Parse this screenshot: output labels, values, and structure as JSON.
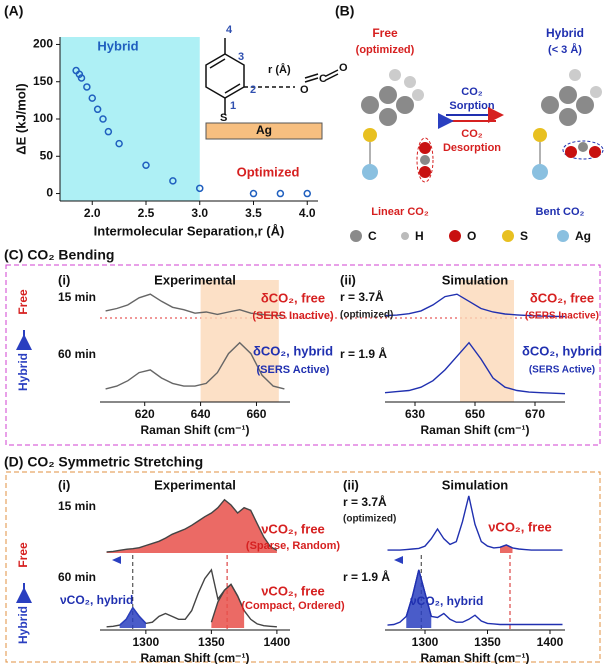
{
  "labels": {
    "a": "(A)",
    "b": "(B)",
    "c": "(C) CO₂ Bending",
    "d": "(D) CO₂ Symmetric Stretching",
    "c_side": [
      "Hybrid",
      "Free"
    ],
    "d_side": [
      "Hybrid",
      "Free"
    ]
  },
  "molecule": {
    "positions": [
      "1",
      "2",
      "3",
      "4"
    ],
    "r": "r (Å)",
    "s": "S",
    "ag": "Ag",
    "co2": [
      "O",
      "C",
      "O"
    ]
  },
  "panel_b": {
    "free": "Free",
    "free_sub": "(optimized)",
    "hybrid": "Hybrid",
    "hybrid_sub": "(< 3 Å)",
    "sorption": [
      "CO₂",
      "Sorption"
    ],
    "desorption": [
      "CO₂",
      "Desorption"
    ],
    "linear": "Linear CO₂",
    "bent": "Bent CO₂",
    "legend": [
      "C",
      "H",
      "O",
      "S",
      "Ag"
    ]
  },
  "chart_data": [
    {
      "type": "scatter",
      "ylabel": "ΔE (kJ/mol)",
      "xlabel": "Intermolecular Separation,r (Å)",
      "color": "#1f5fbf",
      "highlight_color": "#aef0f5",
      "x": [
        1.85,
        1.88,
        1.9,
        1.95,
        2.0,
        2.05,
        2.1,
        2.15,
        2.25,
        2.5,
        2.75,
        3.0,
        3.5,
        3.75,
        4.0
      ],
      "values": [
        165,
        160,
        155,
        143,
        128,
        113,
        100,
        83,
        67,
        38,
        17,
        7,
        0,
        0,
        0
      ],
      "xlim": [
        1.7,
        4.1
      ],
      "ylim": [
        -10,
        210
      ],
      "xticks": [
        {
          "value": 2,
          "label": "2.0"
        },
        {
          "value": 2.5,
          "label": "2.5"
        },
        {
          "value": 3,
          "label": "3.0"
        },
        {
          "value": 3.5,
          "label": "3.5"
        },
        {
          "value": 4,
          "label": "4.0"
        }
      ],
      "yticks": [
        0,
        50,
        100,
        150,
        200
      ],
      "highlight_x": [
        1.7,
        3.0
      ],
      "annotations": [
        {
          "text": "Hybrid",
          "color": "#1f5fbf"
        },
        {
          "text": "Optimized",
          "color": "#d62020"
        }
      ]
    },
    {
      "type": "line",
      "panel": "(i)",
      "title": "Experimental",
      "xlabel": "Raman Shift (cm⁻¹)",
      "xlim": [
        604,
        672
      ],
      "ylim": [
        0,
        1.05
      ],
      "xticks": [
        620,
        640,
        660
      ],
      "highlight": [
        640,
        668
      ],
      "highlight_color": "#fbd8b8",
      "series": [
        {
          "name": "15 min",
          "color": "#666666",
          "x": [
            606,
            610,
            614,
            618,
            622,
            626,
            630,
            634,
            638,
            642,
            646,
            650,
            654,
            658,
            662,
            666,
            670
          ],
          "values": [
            0.3,
            0.4,
            0.55,
            0.85,
            1.0,
            0.7,
            0.45,
            0.35,
            0.2,
            0.25,
            0.15,
            0.25,
            0.35,
            0.2,
            0.15,
            0.1,
            0.1
          ]
        },
        {
          "name": "60 min",
          "color": "#666666",
          "x": [
            606,
            610,
            614,
            618,
            622,
            626,
            630,
            634,
            638,
            642,
            646,
            650,
            654,
            658,
            662,
            666,
            670
          ],
          "values": [
            0.15,
            0.2,
            0.3,
            0.45,
            0.5,
            0.35,
            0.25,
            0.2,
            0.2,
            0.25,
            0.45,
            0.8,
            1.0,
            0.8,
            0.4,
            0.2,
            0.15
          ]
        }
      ],
      "annotations": [
        {
          "text": "δCO₂, free",
          "color": "#d62020"
        },
        {
          "text": "(SERS Inactive)",
          "color": "#d62020"
        },
        {
          "text": "δCO₂, hybrid",
          "color": "#2030b0"
        },
        {
          "text": "(SERS Active)",
          "color": "#2030b0"
        }
      ]
    },
    {
      "type": "line",
      "panel": "(ii)",
      "title": "Simulation",
      "xlabel": "Raman Shift (cm⁻¹)",
      "xlim": [
        620,
        680
      ],
      "ylim": [
        0,
        1.05
      ],
      "xticks": [
        630,
        650,
        670
      ],
      "highlight": [
        645,
        663
      ],
      "highlight_color": "#fbd8b8",
      "series": [
        {
          "name": "r = 3.7Å",
          "color": "#2030b0",
          "x": [
            620,
            624,
            628,
            632,
            636,
            640,
            644,
            648,
            652,
            656,
            660,
            664,
            668,
            672,
            676,
            680
          ],
          "values": [
            0.1,
            0.12,
            0.18,
            0.3,
            0.55,
            0.9,
            1.0,
            0.7,
            0.4,
            0.25,
            0.17,
            0.13,
            0.1,
            0.08,
            0.07,
            0.06
          ]
        },
        {
          "name": "r = 1.9 Å",
          "color": "#2030b0",
          "x": [
            620,
            624,
            628,
            632,
            636,
            640,
            644,
            648,
            652,
            656,
            660,
            664,
            668,
            672,
            676,
            680
          ],
          "values": [
            0.08,
            0.1,
            0.12,
            0.18,
            0.3,
            0.5,
            0.75,
            1.0,
            0.7,
            0.35,
            0.18,
            0.12,
            0.09,
            0.08,
            0.07,
            0.06
          ]
        }
      ],
      "annotations": [
        {
          "text": "(optimized)",
          "color": "#222222"
        },
        {
          "text": "δCO₂, free",
          "color": "#d62020"
        },
        {
          "text": "(SERS Inactive)",
          "color": "#d62020"
        },
        {
          "text": "δCO₂, hybrid",
          "color": "#2030b0"
        },
        {
          "text": "(SERS Active)",
          "color": "#2030b0"
        }
      ]
    },
    {
      "type": "line",
      "panel": "(i)",
      "title": "Experimental",
      "xlabel": "Raman Shift (cm⁻¹)",
      "xlim": [
        1265,
        1410
      ],
      "ylim": [
        0,
        1.05
      ],
      "xticks": [
        1300,
        1350,
        1400
      ],
      "reference_lines": [
        1290,
        1362
      ],
      "series": [
        {
          "name": "15 min",
          "color": "#444444",
          "fill": "#e8504a",
          "x": [
            1270,
            1275,
            1280,
            1285,
            1290,
            1295,
            1300,
            1305,
            1310,
            1315,
            1320,
            1325,
            1330,
            1335,
            1340,
            1345,
            1350,
            1355,
            1360,
            1365,
            1370,
            1375,
            1380,
            1385,
            1390,
            1395,
            1400
          ],
          "values": [
            0.02,
            0.03,
            0.05,
            0.07,
            0.08,
            0.1,
            0.14,
            0.18,
            0.22,
            0.28,
            0.35,
            0.4,
            0.45,
            0.52,
            0.6,
            0.68,
            0.75,
            0.85,
            1.0,
            0.9,
            0.75,
            0.85,
            0.8,
            0.55,
            0.3,
            0.12,
            0.05
          ]
        },
        {
          "name": "60 min",
          "color": "#444444",
          "x": [
            1270,
            1275,
            1280,
            1285,
            1290,
            1295,
            1300,
            1305,
            1310,
            1315,
            1320,
            1325,
            1330,
            1335,
            1340,
            1345,
            1350,
            1355,
            1360,
            1365,
            1370,
            1375,
            1380,
            1385,
            1390,
            1395,
            1400
          ],
          "values": [
            0.02,
            0.03,
            0.05,
            0.15,
            0.35,
            0.2,
            0.08,
            0.1,
            0.2,
            0.25,
            0.2,
            0.15,
            0.15,
            0.3,
            0.6,
            0.85,
            1.0,
            0.5,
            0.65,
            0.75,
            0.55,
            0.3,
            0.15,
            0.07,
            0.04,
            0.03,
            0.02
          ]
        },
        {
          "color": "#2a3fc0",
          "fill": "#2a3fc0",
          "x": [
            1280,
            1285,
            1290,
            1295,
            1300
          ],
          "values": [
            0.05,
            0.15,
            0.35,
            0.2,
            0.08
          ]
        },
        {
          "color": "#444444",
          "fill": "#e8504a",
          "x": [
            1350,
            1355,
            1360,
            1365,
            1370,
            1375
          ],
          "values": [
            0.1,
            0.45,
            0.65,
            0.75,
            0.55,
            0.3
          ]
        }
      ],
      "annotations": [
        {
          "text": "νCO₂, free",
          "color": "#d62020"
        },
        {
          "text": "(Sparse, Random)",
          "color": "#d62020"
        },
        {
          "text": "νCO₂, free",
          "color": "#d62020"
        },
        {
          "text": "(Compact, Ordered)",
          "color": "#d62020"
        },
        {
          "text": "νCO₂, hybrid",
          "color": "#2030b0"
        }
      ]
    },
    {
      "type": "line",
      "panel": "(ii)",
      "title": "Simulation",
      "xlabel": "Raman Shift (cm⁻¹)",
      "xlim": [
        1268,
        1412
      ],
      "ylim": [
        0,
        1.05
      ],
      "xticks": [
        1300,
        1350,
        1400
      ],
      "reference_lines": [
        1297,
        1368
      ],
      "series": [
        {
          "name": "r = 3.7Å",
          "color": "#2030b0",
          "x": [
            1270,
            1275,
            1280,
            1285,
            1290,
            1295,
            1300,
            1305,
            1310,
            1315,
            1320,
            1325,
            1330,
            1335,
            1340,
            1345,
            1350,
            1355,
            1360,
            1365,
            1370,
            1375,
            1380,
            1385,
            1390,
            1395,
            1400,
            1405,
            1410
          ],
          "values": [
            0.05,
            0.05,
            0.05,
            0.06,
            0.07,
            0.08,
            0.12,
            0.25,
            0.42,
            0.25,
            0.15,
            0.2,
            0.55,
            1.0,
            0.5,
            0.2,
            0.12,
            0.09,
            0.1,
            0.14,
            0.09,
            0.07,
            0.06,
            0.05,
            0.05,
            0.05,
            0.05,
            0.05,
            0.05
          ]
        },
        {
          "color": "#2030b0",
          "fill": "#e8504a",
          "x": [
            1360,
            1365,
            1370
          ],
          "values": [
            0.1,
            0.14,
            0.09
          ]
        },
        {
          "name": "r = 1.9 Å",
          "color": "#2030b0",
          "x": [
            1270,
            1275,
            1280,
            1285,
            1290,
            1295,
            1300,
            1305,
            1310,
            1315,
            1320,
            1325,
            1330,
            1335,
            1340,
            1345,
            1350,
            1355,
            1360,
            1365,
            1370,
            1375,
            1380,
            1385,
            1390,
            1395,
            1400,
            1405,
            1410
          ],
          "values": [
            0.05,
            0.06,
            0.1,
            0.2,
            0.55,
            1.0,
            0.6,
            0.2,
            0.18,
            0.25,
            0.15,
            0.1,
            0.1,
            0.15,
            0.22,
            0.12,
            0.08,
            0.07,
            0.06,
            0.06,
            0.06,
            0.06,
            0.06,
            0.06,
            0.06,
            0.06,
            0.06,
            0.06,
            0.06
          ]
        },
        {
          "color": "#2030b0",
          "fill": "#2a3fc0",
          "x": [
            1285,
            1290,
            1295,
            1300,
            1305
          ],
          "values": [
            0.2,
            0.55,
            1.0,
            0.6,
            0.2
          ]
        }
      ],
      "annotations": [
        {
          "text": "(optimized)",
          "color": "#222222"
        },
        {
          "text": "νCO₂, free",
          "color": "#d62020"
        },
        {
          "text": "νCO₂, hybrid",
          "color": "#2030b0"
        }
      ]
    }
  ]
}
